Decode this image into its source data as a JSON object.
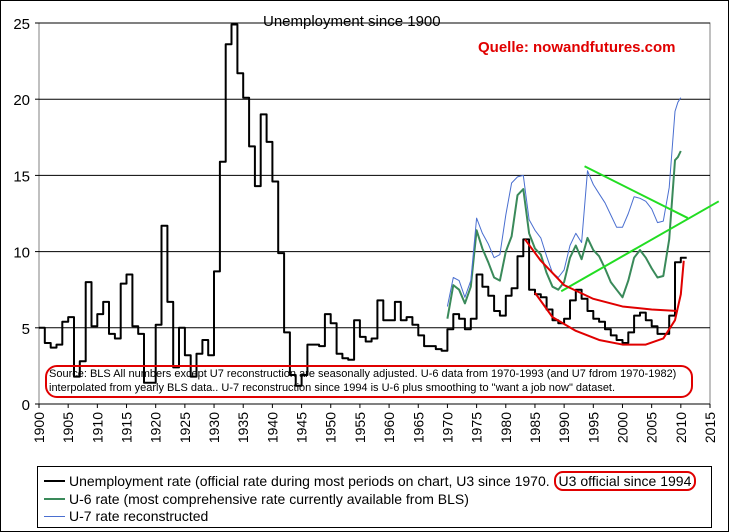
{
  "chart_data": {
    "type": "line",
    "title": "Unemployment since 1900",
    "source_label": "Quelle: nowandfutures.com",
    "note": "Source: BLS    All numbers  except U7 reconstruction are seasonally adjusted.  U-6 data from 1970-1993 (and U7 fdrom 1970-1982) interpolated from yearly BLS data.. U-7 reconstruction since 1994 is U-6 plus smoothing to \"want a job now\" dataset.",
    "xlim": [
      1900,
      2015
    ],
    "ylim": [
      0,
      25
    ],
    "x_ticks": [
      1900,
      1905,
      1910,
      1915,
      1920,
      1925,
      1930,
      1935,
      1940,
      1945,
      1950,
      1955,
      1960,
      1965,
      1970,
      1975,
      1980,
      1985,
      1990,
      1995,
      2000,
      2005,
      2010,
      2015
    ],
    "y_ticks": [
      0,
      5,
      10,
      15,
      20,
      25
    ],
    "x_tick_labels": [
      "1900",
      "1905",
      "1910",
      "1915",
      "1920",
      "1925",
      "1930",
      "1935",
      "1940",
      "1945",
      "1950",
      "1955",
      "1960",
      "1965",
      "1970",
      "1975",
      "1980",
      "1985",
      "1990",
      "1995",
      "2000",
      "2005",
      "2010",
      "2015"
    ],
    "y_tick_labels": [
      "0",
      "5",
      "10",
      "15",
      "20",
      "25"
    ],
    "grid": "horizontal",
    "legend_position": "bottom",
    "series": [
      {
        "name": "Unemployment rate",
        "legend_label": "Unemployment rate (official rate during most periods on chart, U3 since 1970.",
        "legend_highlight": "U3 official since 1994",
        "color": "#000000",
        "style": "step",
        "x": [
          1900,
          1901,
          1902,
          1903,
          1904,
          1905,
          1906,
          1907,
          1908,
          1909,
          1910,
          1911,
          1912,
          1913,
          1914,
          1915,
          1916,
          1917,
          1918,
          1919,
          1920,
          1921,
          1922,
          1923,
          1924,
          1925,
          1926,
          1927,
          1928,
          1929,
          1930,
          1931,
          1932,
          1933,
          1934,
          1935,
          1936,
          1937,
          1938,
          1939,
          1940,
          1941,
          1942,
          1943,
          1944,
          1945,
          1946,
          1947,
          1948,
          1949,
          1950,
          1951,
          1952,
          1953,
          1954,
          1955,
          1956,
          1957,
          1958,
          1959,
          1960,
          1961,
          1962,
          1963,
          1964,
          1965,
          1966,
          1967,
          1968,
          1969,
          1970,
          1971,
          1972,
          1973,
          1974,
          1975,
          1976,
          1977,
          1978,
          1979,
          1980,
          1981,
          1982,
          1983,
          1984,
          1985,
          1986,
          1987,
          1988,
          1989,
          1990,
          1991,
          1992,
          1993,
          1994,
          1995,
          1996,
          1997,
          1998,
          1999,
          2000,
          2001,
          2002,
          2003,
          2004,
          2005,
          2006,
          2007,
          2008,
          2009,
          2010
        ],
        "values": [
          5.0,
          4.0,
          3.7,
          3.9,
          5.4,
          5.7,
          1.8,
          2.8,
          8.0,
          5.1,
          5.9,
          6.7,
          4.6,
          4.3,
          7.9,
          8.5,
          5.1,
          4.6,
          1.4,
          1.4,
          5.2,
          11.7,
          6.7,
          2.4,
          5.0,
          3.2,
          1.8,
          3.3,
          4.2,
          3.2,
          8.7,
          15.9,
          23.6,
          24.9,
          21.7,
          20.1,
          16.9,
          14.3,
          19.0,
          17.2,
          14.6,
          9.9,
          4.7,
          1.9,
          1.2,
          1.9,
          3.9,
          3.9,
          3.8,
          5.9,
          5.3,
          3.3,
          3.0,
          2.9,
          5.5,
          4.4,
          4.1,
          4.3,
          6.8,
          5.5,
          5.5,
          6.7,
          5.5,
          5.7,
          5.2,
          4.5,
          3.8,
          3.8,
          3.6,
          3.5,
          4.9,
          5.9,
          5.6,
          4.9,
          5.6,
          8.5,
          7.7,
          7.1,
          6.1,
          5.8,
          7.1,
          7.6,
          9.7,
          10.8,
          7.5,
          7.2,
          7.0,
          6.2,
          5.5,
          5.3,
          5.6,
          6.8,
          7.5,
          6.9,
          6.1,
          5.6,
          5.4,
          4.9,
          4.5,
          4.2,
          4.0,
          4.7,
          5.8,
          6.0,
          5.5,
          5.1,
          4.6,
          4.6,
          5.8,
          9.3,
          9.6
        ]
      },
      {
        "name": "U-6 rate",
        "legend_label": "U-6 rate (most comprehensive rate currently available from BLS)",
        "color": "#3a8a5a",
        "style": "line",
        "x": [
          1970,
          1971,
          1972,
          1973,
          1974,
          1975,
          1976,
          1977,
          1978,
          1979,
          1980,
          1981,
          1982,
          1983,
          1984,
          1985,
          1986,
          1987,
          1988,
          1989,
          1990,
          1991,
          1992,
          1993,
          1994,
          1995,
          1996,
          1997,
          1998,
          1999,
          2000,
          2001,
          2002,
          2003,
          2004,
          2005,
          2006,
          2007,
          2008,
          2009,
          2009.5,
          2010
        ],
        "values": [
          5.6,
          7.8,
          7.5,
          6.6,
          7.7,
          11.4,
          10.2,
          9.3,
          8.3,
          8.1,
          10.0,
          11.0,
          13.7,
          14.1,
          11.2,
          10.2,
          9.8,
          8.6,
          7.7,
          7.5,
          8.0,
          9.6,
          10.4,
          9.5,
          10.9,
          10.1,
          9.7,
          8.9,
          8.0,
          7.5,
          7.0,
          8.1,
          9.6,
          10.1,
          9.6,
          8.9,
          8.3,
          8.4,
          10.8,
          16.0,
          16.2,
          16.6
        ]
      },
      {
        "name": "U-7 rate reconstructed",
        "legend_label": "U-7 rate reconstructed",
        "color": "#4a6fd0",
        "style": "line",
        "x": [
          1970,
          1971,
          1972,
          1973,
          1974,
          1975,
          1976,
          1977,
          1978,
          1979,
          1980,
          1981,
          1982,
          1983,
          1984,
          1985,
          1986,
          1987,
          1988,
          1989,
          1990,
          1991,
          1992,
          1993,
          1994,
          1995,
          1996,
          1997,
          1998,
          1999,
          2000,
          2001,
          2002,
          2003,
          2004,
          2005,
          2006,
          2007,
          2008,
          2009,
          2009.5,
          2010
        ],
        "values": [
          6.4,
          8.3,
          8.1,
          7.0,
          8.1,
          12.2,
          11.2,
          10.5,
          9.6,
          9.8,
          12.4,
          14.5,
          14.9,
          15.0,
          12.1,
          11.4,
          10.9,
          9.7,
          8.6,
          8.3,
          8.8,
          10.4,
          11.2,
          10.6,
          15.3,
          14.4,
          13.8,
          13.2,
          12.4,
          11.6,
          11.6,
          12.5,
          13.6,
          13.5,
          13.3,
          12.8,
          11.9,
          12.0,
          14.2,
          19.2,
          19.8,
          20.1
        ]
      }
    ],
    "annotations": {
      "green_lines": [
        {
          "from": [
            1993.5,
            15.6
          ],
          "to": [
            2011.2,
            12.2
          ]
        },
        {
          "from": [
            1989.5,
            7.4
          ],
          "to": [
            2016.5,
            13.3
          ]
        }
      ],
      "red_curve_upper": [
        [
          1983.3,
          10.8
        ],
        [
          1986,
          9.4
        ],
        [
          1990,
          7.8
        ],
        [
          1995,
          6.9
        ],
        [
          2000,
          6.4
        ],
        [
          2005,
          6.2
        ],
        [
          2009.5,
          6.1
        ]
      ],
      "red_curve_lower": [
        [
          1985,
          7.3
        ],
        [
          1988,
          5.7
        ],
        [
          1992,
          4.8
        ],
        [
          1996,
          4.2
        ],
        [
          2000,
          3.9
        ],
        [
          2004,
          3.9
        ],
        [
          2007,
          4.3
        ],
        [
          2009,
          5.5
        ],
        [
          2010,
          7.2
        ],
        [
          2010.5,
          9.4
        ]
      ]
    }
  }
}
